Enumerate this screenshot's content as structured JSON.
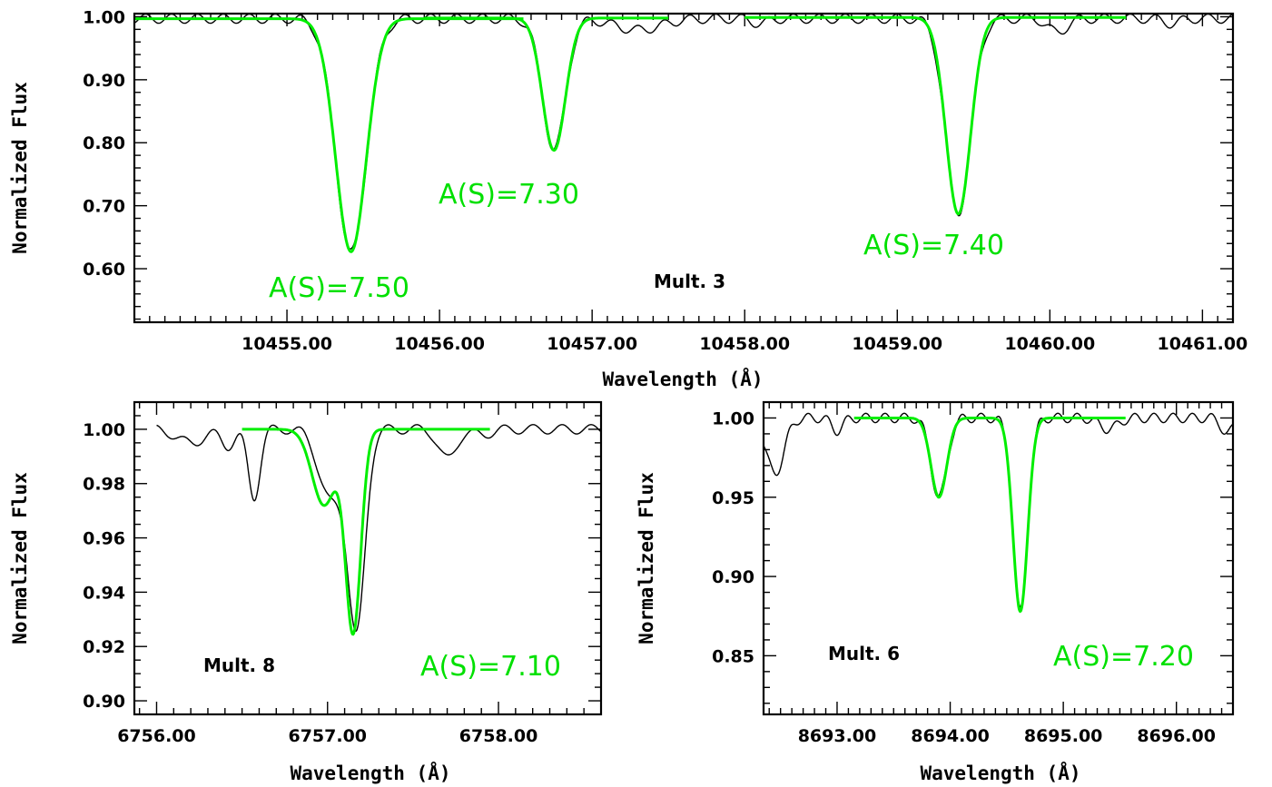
{
  "chart_data": [
    {
      "id": "top",
      "type": "line",
      "xlabel": "Wavelength (Å)",
      "ylabel": "Normalized Flux",
      "xlim": [
        10454.0,
        10461.2
      ],
      "ylim": [
        0.515,
        1.005
      ],
      "xticks": [
        10455.0,
        10456.0,
        10457.0,
        10458.0,
        10459.0,
        10460.0,
        10461.0
      ],
      "xtick_labels": [
        "10455.00",
        "10456.00",
        "10457.00",
        "10458.00",
        "10459.00",
        "10460.00",
        "10461.00"
      ],
      "yticks": [
        0.6,
        0.7,
        0.8,
        0.9,
        1.0
      ],
      "ytick_labels": [
        "0.60",
        "0.70",
        "0.80",
        "0.90",
        "1.00"
      ],
      "minor_x": 0.1,
      "minor_y": 0.02,
      "multiplet": "Mult. 3",
      "observed": {
        "continuum": 0.997,
        "range": [
          10454.0,
          10461.2
        ],
        "lines": [
          {
            "center": 10455.42,
            "depth": 0.372,
            "width": 0.1
          },
          {
            "center": 10456.75,
            "depth": 0.208,
            "width": 0.075
          },
          {
            "center": 10459.4,
            "depth": 0.308,
            "width": 0.082
          },
          {
            "center": 10457.3,
            "depth": 0.018,
            "width": 0.15
          },
          {
            "center": 10460.05,
            "depth": 0.022,
            "width": 0.06
          },
          {
            "center": 10458.1,
            "depth": 0.008,
            "width": 0.05
          },
          {
            "center": 10460.8,
            "depth": 0.008,
            "width": 0.05
          }
        ]
      },
      "models": [
        {
          "label": "A(S)=7.50",
          "range": [
            10454.0,
            10456.55
          ],
          "continuum": 0.997,
          "center": 10455.42,
          "depth": 0.37,
          "width": 0.1,
          "flat": true
        },
        {
          "label": "A(S)=7.30",
          "range": [
            10455.9,
            10457.5
          ],
          "continuum": 0.998,
          "center": 10456.75,
          "depth": 0.21,
          "width": 0.075
        },
        {
          "label": "A(S)=7.40",
          "range": [
            10458.0,
            10460.5
          ],
          "continuum": 0.999,
          "center": 10459.4,
          "depth": 0.312,
          "width": 0.08
        }
      ]
    },
    {
      "id": "bottom-left",
      "type": "line",
      "xlabel": "Wavelength (Å)",
      "ylabel": "Normalized Flux",
      "xlim": [
        6755.87,
        6758.6
      ],
      "ylim": [
        0.895,
        1.01
      ],
      "xticks": [
        6756.0,
        6757.0,
        6758.0
      ],
      "xtick_labels": [
        "6756.00",
        "6757.00",
        "6758.00"
      ],
      "yticks": [
        0.9,
        0.92,
        0.94,
        0.96,
        0.98,
        1.0
      ],
      "ytick_labels": [
        "0.90",
        "0.92",
        "0.94",
        "0.96",
        "0.98",
        "1.00"
      ],
      "minor_x": 0.1,
      "minor_y": 0.005,
      "multiplet": "Mult. 8",
      "observed": {
        "continuum": 1.0,
        "range": [
          6756.0,
          6758.6
        ],
        "lines": [
          {
            "center": 6757.17,
            "depth": 0.073,
            "width": 0.05
          },
          {
            "center": 6757.02,
            "depth": 0.026,
            "width": 0.07
          },
          {
            "center": 6756.57,
            "depth": 0.025,
            "width": 0.035
          },
          {
            "center": 6756.2,
            "depth": 0.005,
            "width": 0.08
          },
          {
            "center": 6756.42,
            "depth": 0.006,
            "width": 0.04
          },
          {
            "center": 6757.7,
            "depth": 0.011,
            "width": 0.05
          },
          {
            "center": 6757.9,
            "depth": 0.002,
            "width": 0.06
          }
        ]
      },
      "models": [
        {
          "label": "A(S)=7.10",
          "range": [
            6756.5,
            6757.95
          ],
          "continuum": 1.0,
          "center": 6757.15,
          "depth": 0.074,
          "width": 0.045,
          "extra": [
            {
              "center": 6756.98,
              "depth": 0.028,
              "width": 0.07
            }
          ]
        }
      ]
    },
    {
      "id": "bottom-right",
      "type": "line",
      "xlabel": "Wavelength (Å)",
      "ylabel": "Normalized Flux",
      "xlim": [
        8692.35,
        8696.5
      ],
      "ylim": [
        0.813,
        1.01
      ],
      "xticks": [
        8693.0,
        8694.0,
        8695.0,
        8696.0
      ],
      "xtick_labels": [
        "8693.00",
        "8694.00",
        "8695.00",
        "8696.00"
      ],
      "yticks": [
        0.85,
        0.9,
        0.95,
        1.0
      ],
      "ytick_labels": [
        "0.85",
        "0.90",
        "0.95",
        "1.00"
      ],
      "minor_x": 0.1,
      "minor_y": 0.01,
      "multiplet": "Mult. 6",
      "observed": {
        "continuum": 1.0,
        "range": [
          8692.35,
          8696.5
        ],
        "lines": [
          {
            "center": 8694.62,
            "depth": 0.122,
            "width": 0.065
          },
          {
            "center": 8693.9,
            "depth": 0.05,
            "width": 0.07
          },
          {
            "center": 8692.45,
            "depth": 0.035,
            "width": 0.08
          },
          {
            "center": 8693.0,
            "depth": 0.008,
            "width": 0.05
          },
          {
            "center": 8695.4,
            "depth": 0.007,
            "width": 0.08
          },
          {
            "center": 8696.45,
            "depth": 0.01,
            "width": 0.05
          }
        ]
      },
      "models": [
        {
          "label": "A(S)=7.20",
          "range": [
            8693.15,
            8695.55
          ],
          "continuum": 1.0,
          "center": 8694.62,
          "depth": 0.122,
          "width": 0.065,
          "extra": [
            {
              "center": 8693.9,
              "depth": 0.05,
              "width": 0.07
            }
          ]
        }
      ]
    }
  ]
}
